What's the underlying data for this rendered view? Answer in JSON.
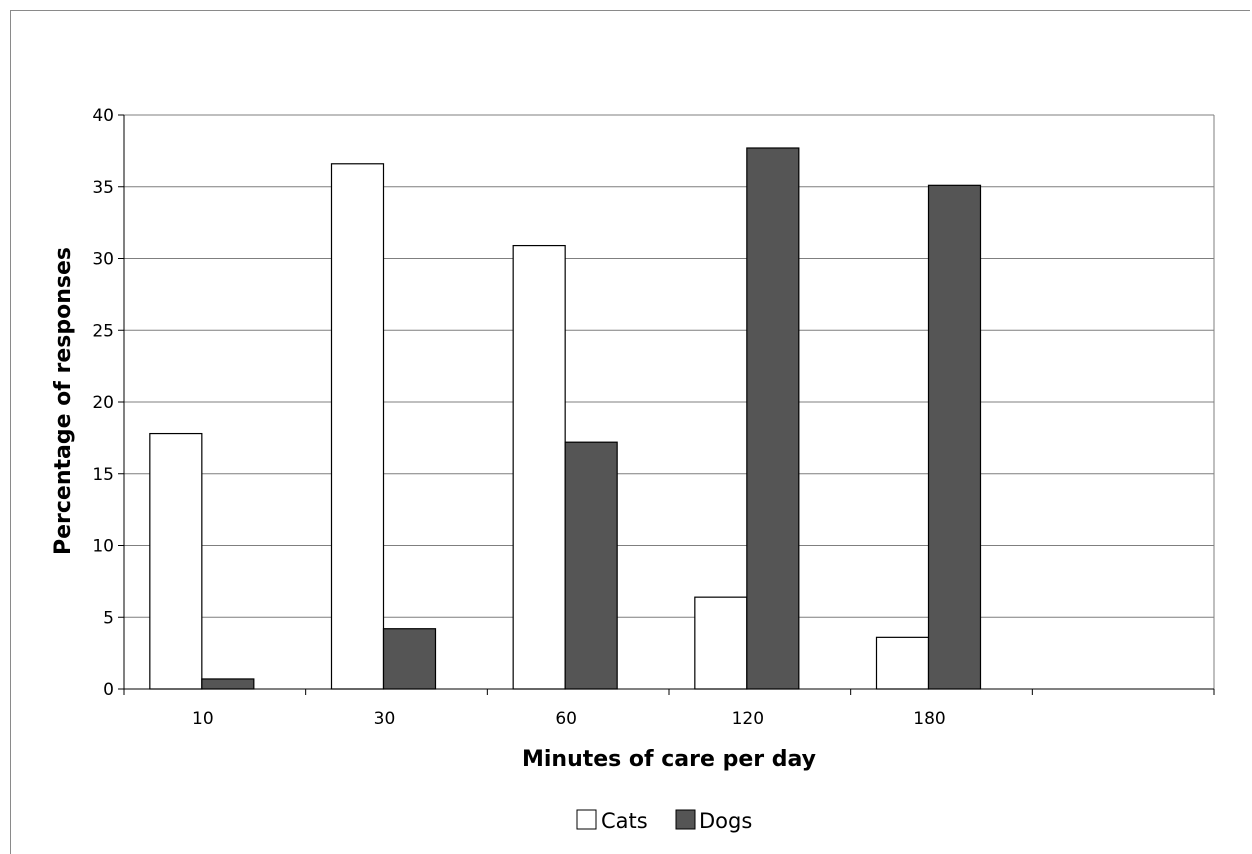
{
  "chart_data": {
    "type": "bar",
    "categories": [
      "10",
      "30",
      "60",
      "120",
      "180",
      ""
    ],
    "series": [
      {
        "name": "Cats",
        "values": [
          17.8,
          36.6,
          30.9,
          6.4,
          3.6,
          null
        ],
        "color": "#ffffff"
      },
      {
        "name": "Dogs",
        "values": [
          0.7,
          4.2,
          17.2,
          37.7,
          35.1,
          null
        ],
        "color": "#555555"
      }
    ],
    "xlabel": "Minutes of care per day",
    "ylabel": "Percentage of responses",
    "ylim": [
      0,
      40
    ],
    "yticks": [
      "0",
      "5",
      "10",
      "15",
      "20",
      "25",
      "30",
      "35",
      "40"
    ],
    "grid": true,
    "legend": "bottom-center"
  }
}
